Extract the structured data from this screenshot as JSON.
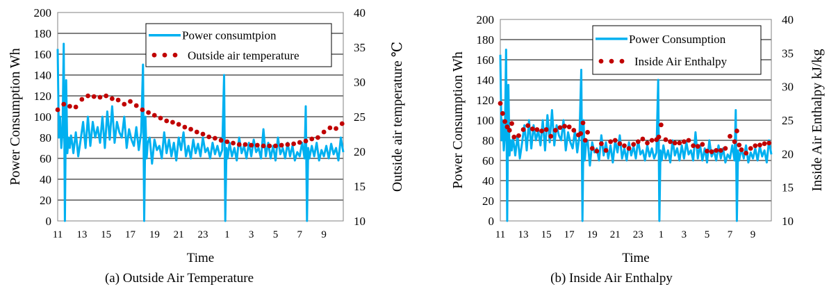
{
  "chart_data": [
    {
      "type": "line",
      "caption": "(a) Outside Air Temperature",
      "xlabel": "Time",
      "ylabel": "Power Consumption  Wh",
      "y2label": "Outside air temperature  ℃",
      "ylim": [
        0,
        200
      ],
      "y2lim": [
        10,
        40
      ],
      "x_ticks": [
        "11",
        "13",
        "15",
        "17",
        "19",
        "21",
        "23",
        "1",
        "3",
        "5",
        "7",
        "9"
      ],
      "y_ticks": [
        "0",
        "20",
        "40",
        "60",
        "80",
        "100",
        "120",
        "140",
        "160",
        "180",
        "200"
      ],
      "y2_ticks": [
        "10",
        "15",
        "20",
        "25",
        "30",
        "35",
        "40"
      ],
      "grid": true,
      "legend_position": "top-right",
      "series": [
        {
          "name": "Power consumtpion",
          "axis": "left",
          "style": "line",
          "color": "#00b0f0",
          "x": [
            11.0,
            11.1,
            11.2,
            11.3,
            11.4,
            11.5,
            11.6,
            11.7,
            11.8,
            11.9,
            12.0,
            12.1,
            12.2,
            12.3,
            12.5,
            12.7,
            12.9,
            13.1,
            13.3,
            13.5,
            13.7,
            13.9,
            14.1,
            14.3,
            14.5,
            14.7,
            14.9,
            15.1,
            15.3,
            15.5,
            15.7,
            15.9,
            16.1,
            16.3,
            16.5,
            16.7,
            16.9,
            17.1,
            17.3,
            17.5,
            17.7,
            17.9,
            18.05,
            18.15,
            18.25,
            18.35,
            18.45,
            18.6,
            18.8,
            19.0,
            19.2,
            19.4,
            19.6,
            19.8,
            20.0,
            20.2,
            20.4,
            20.6,
            20.8,
            21.0,
            21.2,
            21.4,
            21.6,
            21.8,
            22.0,
            22.2,
            22.4,
            22.6,
            22.8,
            23.0,
            23.2,
            23.4,
            23.6,
            23.8,
            24.0,
            24.2,
            24.4,
            24.6,
            24.75,
            24.85,
            24.95,
            25.05,
            25.2,
            25.4,
            25.6,
            25.8,
            26.0,
            26.2,
            26.4,
            26.6,
            26.8,
            27.0,
            27.2,
            27.4,
            27.6,
            27.8,
            28.0,
            28.2,
            28.4,
            28.6,
            28.8,
            29.0,
            29.2,
            29.4,
            29.6,
            29.8,
            30.0,
            30.2,
            30.4,
            30.6,
            30.8,
            31.0,
            31.2,
            31.4,
            31.5,
            31.6,
            31.7,
            31.8,
            32.0,
            32.2,
            32.4,
            32.6,
            32.8,
            33.0,
            33.2,
            33.4,
            33.6,
            33.8,
            34.0,
            34.2,
            34.4,
            34.6
          ],
          "values": [
            165,
            80,
            100,
            70,
            85,
            170,
            0,
            135,
            65,
            80,
            70,
            82,
            75,
            65,
            85,
            62,
            78,
            95,
            70,
            100,
            72,
            95,
            80,
            90,
            75,
            100,
            70,
            105,
            78,
            110,
            75,
            95,
            85,
            80,
            100,
            70,
            88,
            78,
            72,
            90,
            68,
            85,
            150,
            0,
            100,
            60,
            75,
            80,
            55,
            78,
            68,
            72,
            60,
            85,
            65,
            78,
            62,
            75,
            58,
            80,
            68,
            85,
            62,
            72,
            60,
            78,
            65,
            74,
            62,
            80,
            66,
            70,
            60,
            75,
            64,
            72,
            62,
            68,
            140,
            0,
            70,
            60,
            75,
            62,
            70,
            58,
            80,
            65,
            72,
            60,
            75,
            62,
            78,
            66,
            70,
            60,
            88,
            62,
            75,
            60,
            72,
            58,
            80,
            64,
            70,
            60,
            75,
            62,
            72,
            58,
            66,
            62,
            75,
            60,
            110,
            0,
            70,
            60,
            72,
            62,
            75,
            58,
            68,
            62,
            72,
            60,
            74,
            64,
            70,
            58,
            80,
            66
          ],
          "x_start": 11,
          "x_end": 34.6
        },
        {
          "name": "Outside air temperature",
          "axis": "right",
          "style": "dots",
          "color": "#c00000",
          "x": [
            11.0,
            11.5,
            12.0,
            12.5,
            13.0,
            13.5,
            14.0,
            14.5,
            15.0,
            15.5,
            16.0,
            16.5,
            17.0,
            17.5,
            18.0,
            18.5,
            19.0,
            19.5,
            20.0,
            20.5,
            21.0,
            21.5,
            22.0,
            22.5,
            23.0,
            23.5,
            24.0,
            24.5,
            25.0,
            25.5,
            26.0,
            26.5,
            27.0,
            27.5,
            28.0,
            28.5,
            29.0,
            29.5,
            30.0,
            30.5,
            31.0,
            31.5,
            32.0,
            32.5,
            33.0,
            33.5,
            34.0,
            34.5
          ],
          "values": [
            26.0,
            26.8,
            26.5,
            26.4,
            27.5,
            28.0,
            27.9,
            27.8,
            28.0,
            27.6,
            27.4,
            26.8,
            27.2,
            26.6,
            26.0,
            25.6,
            25.2,
            24.8,
            24.4,
            24.2,
            23.9,
            23.5,
            23.2,
            22.8,
            22.5,
            22.1,
            21.9,
            21.6,
            21.4,
            21.2,
            21.0,
            21.0,
            20.9,
            20.9,
            20.8,
            20.8,
            20.8,
            20.9,
            21.0,
            21.1,
            21.3,
            21.5,
            21.8,
            22.0,
            22.8,
            23.4,
            23.3,
            24.0
          ]
        }
      ]
    },
    {
      "type": "line",
      "caption": "(b)  Inside Air Enthalpy",
      "xlabel": "Time",
      "ylabel": "Power Consumption  Wh",
      "y2label": "Inside Air Enthalpy  kJ/kg",
      "ylim": [
        0,
        200
      ],
      "y2lim": [
        10,
        40
      ],
      "x_ticks": [
        "11",
        "13",
        "15",
        "17",
        "19",
        "21",
        "23",
        "1",
        "3",
        "5",
        "7",
        "9"
      ],
      "y_ticks": [
        "0",
        "20",
        "40",
        "60",
        "80",
        "100",
        "120",
        "140",
        "160",
        "180",
        "200"
      ],
      "y2_ticks": [
        "10",
        "15",
        "20",
        "25",
        "30",
        "35",
        "40"
      ],
      "grid": true,
      "legend_position": "top-right",
      "series": [
        {
          "name": "Power Consumption",
          "axis": "left",
          "style": "line",
          "color": "#00b0f0",
          "x": [
            11.0,
            11.1,
            11.2,
            11.3,
            11.4,
            11.5,
            11.6,
            11.7,
            11.8,
            11.9,
            12.0,
            12.1,
            12.2,
            12.3,
            12.5,
            12.7,
            12.9,
            13.1,
            13.3,
            13.5,
            13.7,
            13.9,
            14.1,
            14.3,
            14.5,
            14.7,
            14.9,
            15.1,
            15.3,
            15.5,
            15.7,
            15.9,
            16.1,
            16.3,
            16.5,
            16.7,
            16.9,
            17.1,
            17.3,
            17.5,
            17.7,
            17.9,
            18.05,
            18.15,
            18.25,
            18.35,
            18.45,
            18.6,
            18.8,
            19.0,
            19.2,
            19.4,
            19.6,
            19.8,
            20.0,
            20.2,
            20.4,
            20.6,
            20.8,
            21.0,
            21.2,
            21.4,
            21.6,
            21.8,
            22.0,
            22.2,
            22.4,
            22.6,
            22.8,
            23.0,
            23.2,
            23.4,
            23.6,
            23.8,
            24.0,
            24.2,
            24.4,
            24.6,
            24.75,
            24.85,
            24.95,
            25.05,
            25.2,
            25.4,
            25.6,
            25.8,
            26.0,
            26.2,
            26.4,
            26.6,
            26.8,
            27.0,
            27.2,
            27.4,
            27.6,
            27.8,
            28.0,
            28.2,
            28.4,
            28.6,
            28.8,
            29.0,
            29.2,
            29.4,
            29.6,
            29.8,
            30.0,
            30.2,
            30.4,
            30.6,
            30.8,
            31.0,
            31.2,
            31.4,
            31.5,
            31.6,
            31.7,
            31.8,
            32.0,
            32.2,
            32.4,
            32.6,
            32.8,
            33.0,
            33.2,
            33.4,
            33.6,
            33.8,
            34.0,
            34.2,
            34.4,
            34.6
          ],
          "values": [
            165,
            80,
            100,
            70,
            85,
            170,
            0,
            135,
            65,
            80,
            70,
            82,
            75,
            65,
            85,
            62,
            78,
            95,
            70,
            100,
            72,
            95,
            80,
            90,
            75,
            100,
            70,
            105,
            78,
            110,
            75,
            95,
            85,
            80,
            100,
            70,
            88,
            78,
            72,
            90,
            68,
            85,
            150,
            0,
            100,
            60,
            75,
            80,
            55,
            78,
            68,
            72,
            60,
            85,
            65,
            78,
            62,
            75,
            58,
            80,
            68,
            85,
            62,
            72,
            60,
            78,
            65,
            74,
            62,
            80,
            66,
            70,
            60,
            75,
            64,
            72,
            62,
            68,
            140,
            0,
            70,
            60,
            75,
            62,
            70,
            58,
            80,
            65,
            72,
            60,
            75,
            62,
            78,
            66,
            70,
            60,
            88,
            62,
            75,
            60,
            72,
            58,
            80,
            64,
            70,
            60,
            75,
            62,
            72,
            58,
            66,
            62,
            75,
            60,
            110,
            0,
            70,
            60,
            72,
            62,
            75,
            58,
            68,
            62,
            72,
            60,
            74,
            64,
            70,
            58,
            80,
            66
          ],
          "x_start": 11,
          "x_end": 34.6
        },
        {
          "name": "Inside Air Enthalpy",
          "axis": "right",
          "style": "dots",
          "color": "#c00000",
          "x": [
            11.0,
            11.2,
            11.4,
            11.6,
            11.8,
            12.0,
            12.2,
            12.6,
            13.0,
            13.4,
            13.8,
            14.2,
            14.6,
            15.0,
            15.4,
            15.8,
            16.2,
            16.6,
            17.0,
            17.4,
            17.8,
            18.0,
            18.2,
            18.4,
            18.6,
            19.0,
            19.4,
            19.8,
            20.2,
            20.6,
            21.0,
            21.4,
            21.8,
            22.2,
            22.6,
            23.0,
            23.4,
            23.8,
            24.2,
            24.6,
            24.8,
            25.0,
            25.4,
            25.8,
            26.2,
            26.6,
            27.0,
            27.4,
            27.8,
            28.2,
            28.6,
            29.0,
            29.4,
            29.8,
            30.2,
            30.6,
            31.0,
            31.4,
            31.6,
            31.8,
            32.0,
            32.4,
            32.8,
            33.2,
            33.6,
            34.0,
            34.4
          ],
          "values": [
            27.5,
            26.0,
            24.8,
            24.0,
            23.5,
            24.5,
            22.5,
            22.7,
            23.6,
            24.2,
            23.7,
            23.6,
            23.4,
            23.6,
            22.6,
            23.5,
            23.9,
            24.1,
            24.0,
            23.5,
            22.8,
            23.0,
            24.6,
            22.0,
            23.2,
            20.8,
            20.4,
            21.5,
            20.5,
            21.8,
            22.0,
            21.5,
            21.2,
            20.8,
            21.4,
            21.8,
            22.2,
            21.6,
            22.0,
            22.1,
            22.5,
            24.3,
            22.1,
            21.8,
            21.6,
            21.6,
            21.8,
            22.0,
            21.2,
            21.1,
            21.4,
            20.4,
            20.3,
            20.5,
            20.5,
            20.8,
            22.6,
            21.8,
            23.4,
            21.3,
            20.6,
            20.1,
            20.8,
            21.2,
            21.3,
            21.5,
            21.6
          ]
        }
      ]
    }
  ]
}
